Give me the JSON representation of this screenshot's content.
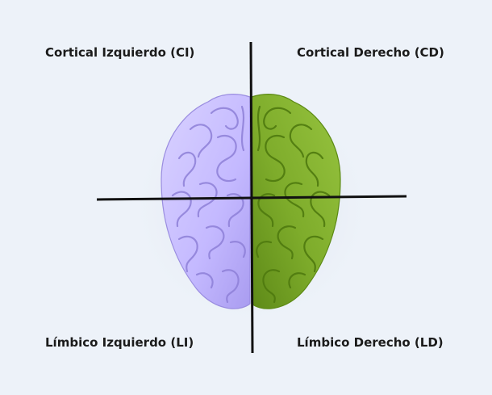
{
  "quadrants": {
    "top_left": "Cortical Izquierdo (CI)",
    "top_right": "Cortical Derecho (CD)",
    "bottom_left": "Límbico Izquierdo (LI)",
    "bottom_right": "Límbico Derecho (LD)"
  },
  "colors": {
    "left_hemisphere": "#c6bcff",
    "right_hemisphere": "#7fad2c",
    "axes": "#111111",
    "background": "#edf2f9"
  }
}
